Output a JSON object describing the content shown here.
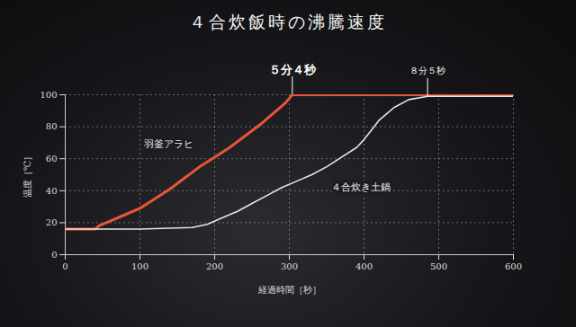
{
  "chart_data": {
    "type": "line",
    "title": "４合炊飯時の沸騰速度",
    "x_label": "経過時間［秒］",
    "y_label": "温度［℃］",
    "xlim": [
      0,
      600
    ],
    "xticks": [
      0,
      100,
      200,
      300,
      400,
      500,
      600
    ],
    "ylim": [
      0,
      100
    ],
    "yticks": [
      0,
      20,
      40,
      60,
      80,
      100
    ],
    "grid": true,
    "series": [
      {
        "name": "羽釜アラヒ",
        "color": "#e8553a",
        "x": [
          0,
          40,
          45,
          60,
          80,
          100,
          120,
          140,
          160,
          180,
          200,
          220,
          240,
          260,
          280,
          295,
          304,
          600
        ],
        "values": [
          16,
          16,
          18,
          21,
          25,
          29,
          35,
          41,
          48,
          55,
          61,
          67,
          74,
          81,
          89,
          95,
          100,
          100
        ]
      },
      {
        "name": "４合炊き土鍋",
        "color": "#e6e6e6",
        "x": [
          0,
          100,
          170,
          190,
          210,
          230,
          250,
          270,
          290,
          310,
          330,
          350,
          370,
          390,
          400,
          410,
          420,
          430,
          440,
          460,
          485,
          600
        ],
        "values": [
          16,
          16,
          17,
          19,
          23,
          27,
          32,
          37,
          42,
          46,
          50,
          55,
          61,
          67,
          72,
          78,
          84,
          88,
          92,
          97,
          99,
          99
        ]
      }
    ],
    "annotations": [
      {
        "text": "５分４秒",
        "x": 304,
        "y": 100
      },
      {
        "text": "８分５秒",
        "x": 485,
        "y": 99
      }
    ]
  }
}
